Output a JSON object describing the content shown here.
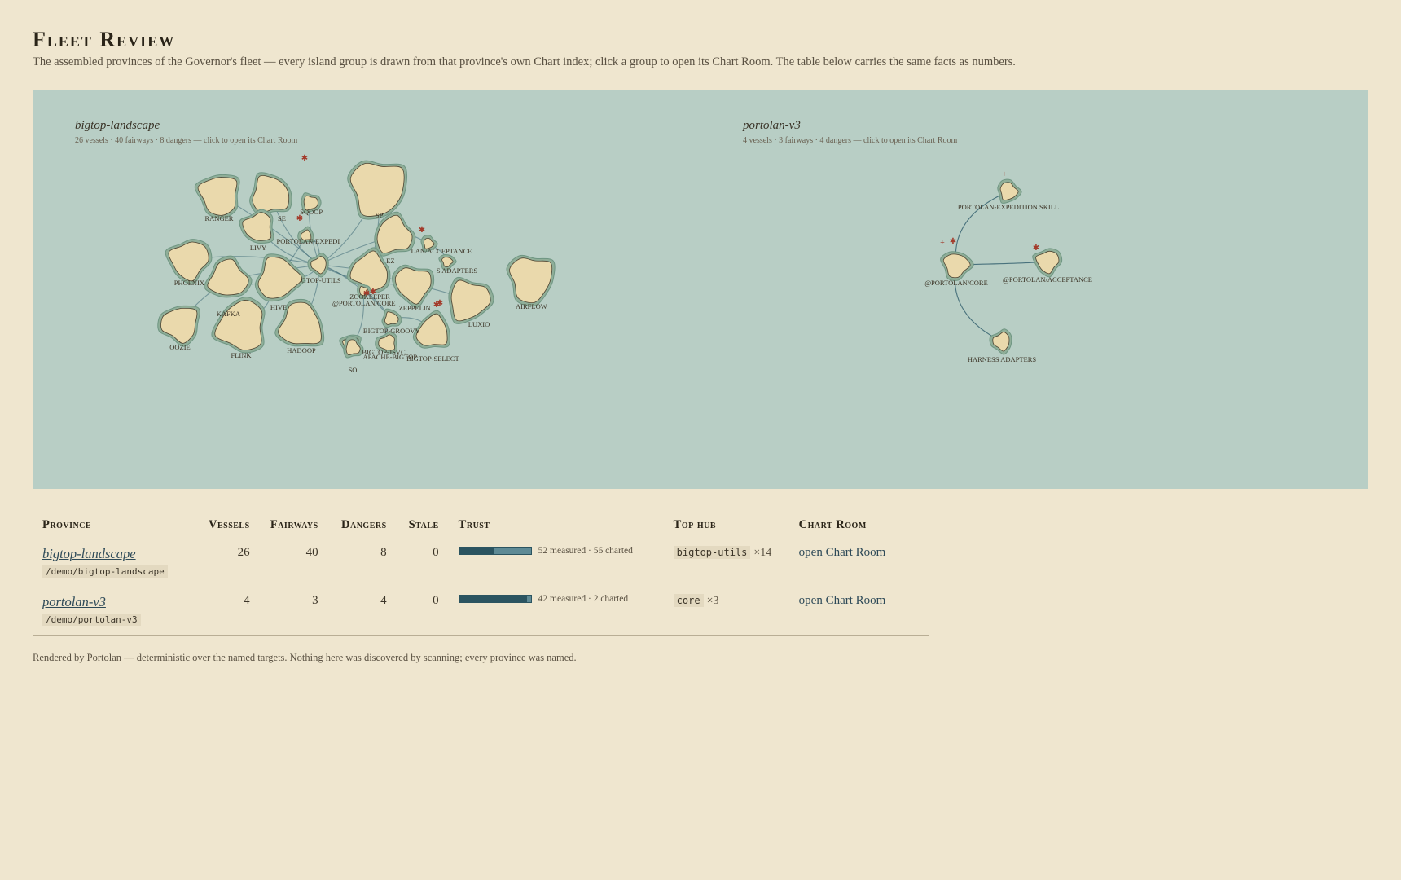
{
  "page": {
    "title": "Fleet Review",
    "subtitle": "The assembled provinces of the Governor's fleet — every island group is drawn from that province's own Chart index; click a group to open its Chart Room. The table below carries the same facts as numbers."
  },
  "map": {
    "background": "#b8cec5",
    "groups": [
      {
        "title": "bigtop-landscape",
        "meta": "26 vessels · 40 fairways · 8 dangers — click to open its Chart Room",
        "islands": [
          "SE",
          "SQOOP",
          "SP",
          "RANGER",
          "LIVY",
          "PORTOLAN-EXPEDI",
          "EZ",
          "LAN/ACCEPTANCE",
          "S ADAPTERS",
          "PHOENIX",
          "GTOP-UTILS",
          "ZOOKEEPER",
          "KAFKA",
          "HIVE",
          "@PORTOLAN/CORE",
          "ZEPPELIN",
          "OOZIE",
          "FLINK",
          "HADOOP",
          "BIGTOP-GROOVY",
          "LUXIO",
          "AIRFLOW",
          "BIGTOP-JSVC",
          "APACHE-BIGTOP",
          "BIGTOP-SELECT",
          "SO"
        ]
      },
      {
        "title": "portolan-v3",
        "meta": "4 vessels · 3 fairways · 4 dangers — click to open its Chart Room",
        "islands": [
          "PORTOLAN-EXPEDITION SKILL",
          "@PORTOLAN/CORE",
          "@PORTOLAN/ACCEPTANCE",
          "HARNESS ADAPTERS"
        ]
      }
    ]
  },
  "table": {
    "headers": {
      "province": "Province",
      "vessels": "Vessels",
      "fairways": "Fairways",
      "dangers": "Dangers",
      "stale": "Stale",
      "trust": "Trust",
      "top_hub": "Top hub",
      "chart_room": "Chart Room"
    },
    "rows": [
      {
        "name": "bigtop-landscape",
        "path": "/demo/bigtop-landscape",
        "vessels": "26",
        "fairways": "40",
        "dangers": "8",
        "stale": "0",
        "trust_fraction": 0.48,
        "trust_text": "52 measured · 56 charted",
        "hub": "bigtop-utils",
        "hub_count": "×14",
        "link": "open Chart Room"
      },
      {
        "name": "portolan-v3",
        "path": "/demo/portolan-v3",
        "vessels": "4",
        "fairways": "3",
        "dangers": "4",
        "stale": "0",
        "trust_fraction": 0.95,
        "trust_text": "42 measured · 2 charted",
        "hub": "core",
        "hub_count": "×3",
        "link": "open Chart Room"
      }
    ]
  },
  "footer": "Rendered by Portolan — deterministic over the named targets. Nothing here was discovered by scanning; every province was named."
}
